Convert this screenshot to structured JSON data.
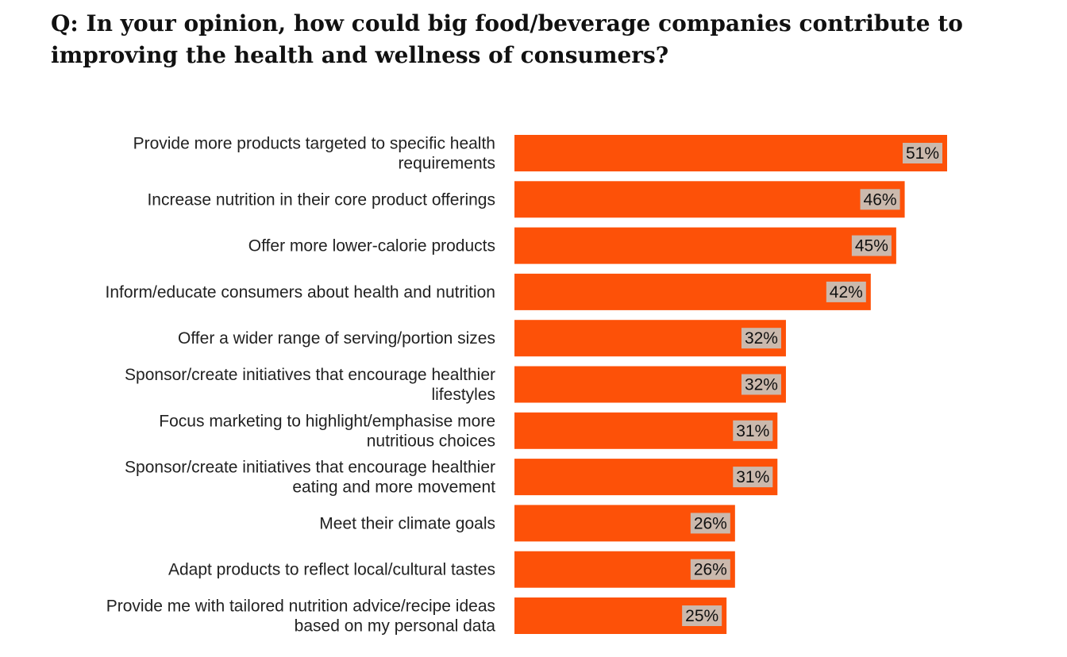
{
  "chart_data": {
    "type": "bar",
    "orientation": "horizontal",
    "title": "Q: In your opinion, how could big food/beverage companies contribute to improving the health and wellness of consumers?",
    "categories": [
      [
        "Provide more products targeted to specific health",
        "requirements"
      ],
      [
        "Increase nutrition in their core product offerings"
      ],
      [
        "Offer more lower-calorie products"
      ],
      [
        "Inform/educate consumers about health and nutrition"
      ],
      [
        "Offer a wider range of serving/portion sizes"
      ],
      [
        "Sponsor/create initiatives that encourage healthier",
        "lifestyles"
      ],
      [
        "Focus marketing to highlight/emphasise more",
        "nutritious choices"
      ],
      [
        "Sponsor/create initiatives that encourage healthier",
        "eating and more movement"
      ],
      [
        "Meet their climate goals"
      ],
      [
        "Adapt products to reflect local/cultural tastes"
      ],
      [
        "Provide me with tailored nutrition advice/recipe ideas",
        "based on my personal data"
      ]
    ],
    "values": [
      51,
      46,
      45,
      42,
      32,
      32,
      31,
      31,
      26,
      26,
      25
    ],
    "value_labels": [
      "51%",
      "46%",
      "45%",
      "42%",
      "32%",
      "32%",
      "31%",
      "31%",
      "26%",
      "26%",
      "25%"
    ],
    "unit": "%",
    "xlim": [
      0,
      51
    ],
    "grid": false,
    "colors": {
      "bar": "#fd5108",
      "label_bg": "#cbb9ad"
    }
  }
}
